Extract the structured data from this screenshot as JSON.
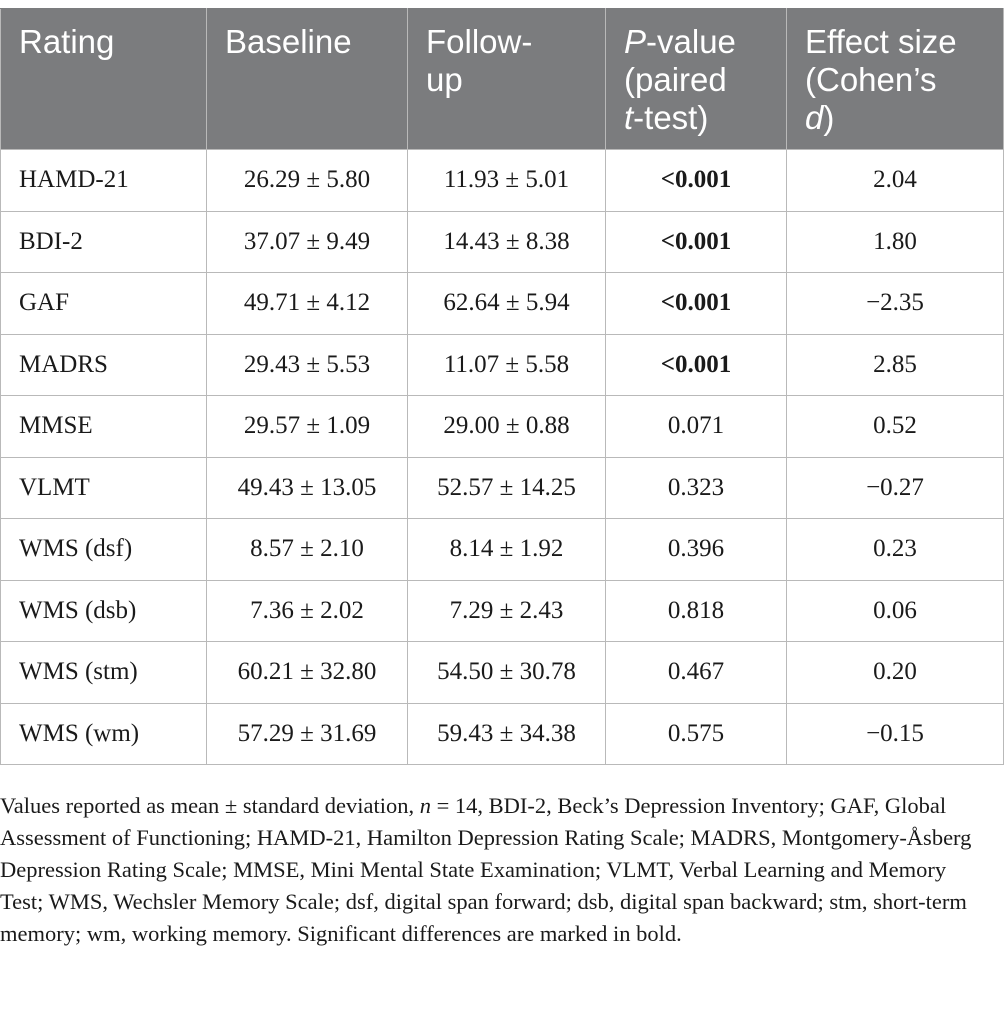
{
  "header": {
    "rating": "Rating",
    "baseline": "Baseline",
    "followup_line1": "Follow-",
    "followup_line2": "up",
    "pvalue_p": "P",
    "pvalue_rest1": "-value",
    "pvalue_line2": "(paired",
    "pvalue_t": "t",
    "pvalue_rest3": "-test)",
    "effect_line1": "Effect size",
    "effect_line2": "(Cohen’s",
    "effect_d": "d",
    "effect_close": ")"
  },
  "rows": [
    {
      "rating": "HAMD-21",
      "baseline": "26.29 ± 5.80",
      "followup": "11.93 ± 5.01",
      "p": "<0.001",
      "effect": "2.04"
    },
    {
      "rating": "BDI-2",
      "baseline": "37.07 ± 9.49",
      "followup": "14.43 ± 8.38",
      "p": "<0.001",
      "effect": "1.80"
    },
    {
      "rating": "GAF",
      "baseline": "49.71 ± 4.12",
      "followup": "62.64 ± 5.94",
      "p": "<0.001",
      "effect": "−2.35"
    },
    {
      "rating": "MADRS",
      "baseline": "29.43 ± 5.53",
      "followup": "11.07 ± 5.58",
      "p": "<0.001",
      "effect": "2.85"
    },
    {
      "rating": "MMSE",
      "baseline": "29.57 ± 1.09",
      "followup": "29.00 ± 0.88",
      "p": "0.071",
      "effect": "0.52"
    },
    {
      "rating": "VLMT",
      "baseline": "49.43 ± 13.05",
      "followup": "52.57 ± 14.25",
      "p": "0.323",
      "effect": "−0.27"
    },
    {
      "rating": "WMS (dsf)",
      "baseline": "8.57 ± 2.10",
      "followup": "8.14 ± 1.92",
      "p": "0.396",
      "effect": "0.23"
    },
    {
      "rating": "WMS (dsb)",
      "baseline": "7.36 ± 2.02",
      "followup": "7.29 ± 2.43",
      "p": "0.818",
      "effect": "0.06"
    },
    {
      "rating": "WMS (stm)",
      "baseline": "60.21 ± 32.80",
      "followup": "54.50 ± 30.78",
      "p": "0.467",
      "effect": "0.20"
    },
    {
      "rating": "WMS (wm)",
      "baseline": "57.29 ± 31.69",
      "followup": "59.43 ± 34.38",
      "p": "0.575",
      "effect": "−0.15"
    }
  ],
  "note": {
    "part1": "Values reported as mean ± standard deviation, ",
    "n_italic": "n",
    "part2": " = 14, BDI-2, Beck’s Depression Inventory; GAF, Global Assessment of Functioning; HAMD-21, Hamilton Depression Rating Scale; MADRS, Montgomery-Åsberg Depression Rating Scale; MMSE, Mini Mental State Examination; VLMT, Verbal Learning and Memory Test; WMS, Wechsler Memory Scale; dsf, digital span forward; dsb, digital span backward; stm, short-term memory; wm, working memory. Significant differences are marked in bold."
  },
  "colors": {
    "header_bg": "#7b7c7e",
    "header_text": "#ffffff",
    "grid": "#b9b9b9"
  }
}
